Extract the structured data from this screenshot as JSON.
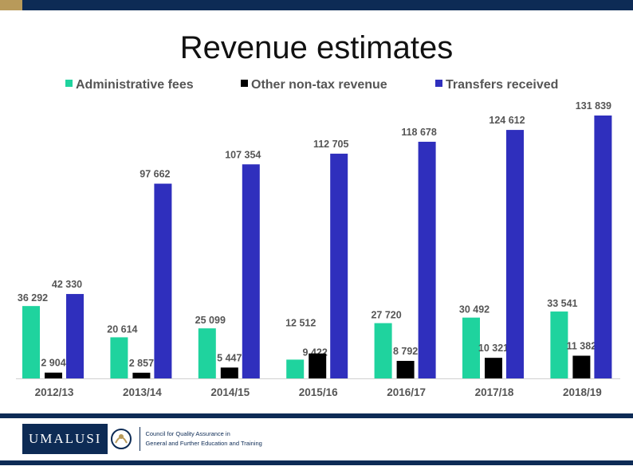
{
  "title": "Revenue estimates",
  "logo": {
    "name": "UMALUSI",
    "tagline_line1": "Council for Quality Assurance in",
    "tagline_line2": "General and Further Education and Training"
  },
  "colors": {
    "top_bar": "#0d2b55",
    "accent": "#b89a5a"
  },
  "chart_data": {
    "type": "bar",
    "title": "Revenue estimates",
    "categories": [
      "2012/13",
      "2013/14",
      "2014/15",
      "2015/16",
      "2016/17",
      "2017/18",
      "2018/19"
    ],
    "legend_position": "top",
    "grid": false,
    "ylim": [
      0,
      140000
    ],
    "series": [
      {
        "name": "Administrative fees",
        "color": "#1fd39e",
        "values": [
          36292,
          20614,
          25099,
          9422,
          27720,
          30492,
          33541
        ],
        "labels": [
          "36 292",
          "20 614",
          "25 099",
          "9 422",
          "27 720",
          "30 492",
          "33 541"
        ]
      },
      {
        "name": "Other non-tax revenue",
        "color": "#000000",
        "values": [
          2904,
          2857,
          5447,
          12512,
          8792,
          10321,
          11382
        ],
        "labels": [
          "2 904",
          "2 857",
          "5 447",
          "12 512",
          "8 792",
          "10 321",
          "11 382"
        ]
      },
      {
        "name": "Transfers received",
        "color": "#2f2fbd",
        "values": [
          42330,
          97662,
          107354,
          112705,
          118678,
          124612,
          131839
        ],
        "labels": [
          "42 330",
          "97 662",
          "107 354",
          "112 705",
          "118 678",
          "124 612",
          "131 839"
        ]
      }
    ]
  }
}
